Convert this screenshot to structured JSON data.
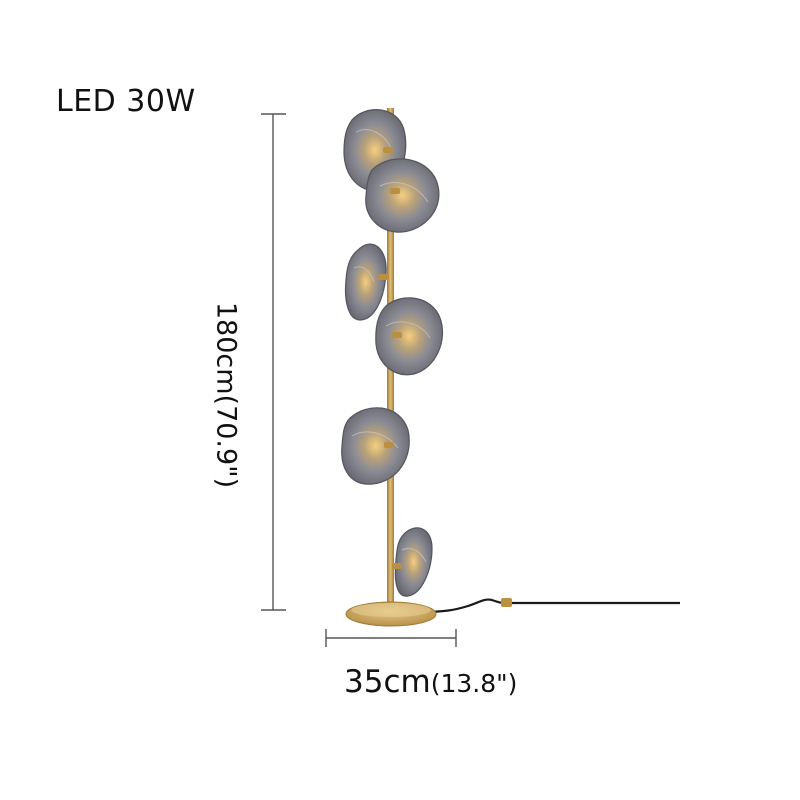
{
  "labels": {
    "power": "LED 30W",
    "height": "180cm(70.9\")",
    "width_main": "35cm",
    "width_sub": "(13.8\")"
  },
  "colors": {
    "brass": "#c9a052",
    "brass_dark": "#a07a36",
    "glass": "#6f6f78",
    "glass_light": "#a9a9b2",
    "bulb_glow": "#f3c16a",
    "cord": "#1a1a1a",
    "dimension_line": "#555555"
  }
}
